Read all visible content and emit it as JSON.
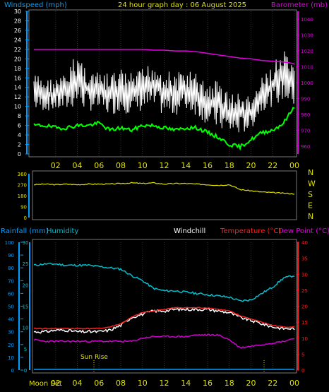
{
  "header": {
    "left_label": "Windspeed (mph)",
    "title": "24 hour graph day : 06 August 2025",
    "right_label": "Barometer (mb)"
  },
  "lower_header": {
    "rainfall": "Rainfall (mm)",
    "humidity": "Humidity",
    "windchill": "Windchill",
    "temperature": "Temperature (°C)",
    "dewpoint": "Dew Point (°C)"
  },
  "bottom_labels": {
    "moon_set": "Moon Set",
    "sun_rise": "Sun Rise"
  },
  "colors": {
    "wind": "#ffffff",
    "barometer": "#e000e0",
    "gust_avg": "#00ff00",
    "direction": "#e0e000",
    "humidity": "#00c0d0",
    "windchill": "#ffffff",
    "temperature": "#ff2020",
    "dewpoint": "#d000d0",
    "rainfall": "#00a0ff",
    "axis_x": "#e0e000",
    "axis_left": "#00a0ff"
  },
  "chart_data": [
    {
      "type": "line",
      "name": "wind-barometer",
      "x_ticks": [
        "02",
        "04",
        "06",
        "08",
        "10",
        "12",
        "14",
        "16",
        "18",
        "20",
        "22",
        "00"
      ],
      "y_left_ticks": [
        0,
        2,
        4,
        6,
        8,
        10,
        12,
        14,
        16,
        18,
        20,
        22,
        24,
        26,
        28,
        30
      ],
      "y_left_lim": [
        0,
        30
      ],
      "y_right_ticks": [
        960,
        970,
        980,
        990,
        1000,
        1010,
        1020,
        1030,
        1040
      ],
      "y_right_lim": [
        955,
        1045
      ],
      "hours": [
        0,
        1,
        2,
        3,
        4,
        5,
        6,
        7,
        8,
        9,
        10,
        11,
        12,
        13,
        14,
        15,
        16,
        17,
        18,
        19,
        20,
        21,
        22,
        23,
        24
      ],
      "wind_max": [
        17,
        16,
        16,
        17,
        22,
        18,
        17,
        17,
        18,
        17,
        18,
        20,
        18,
        17,
        18,
        17,
        15,
        16,
        13,
        13,
        12,
        16,
        19,
        22,
        18
      ],
      "wind_min": [
        9,
        9,
        9,
        9,
        10,
        9,
        9,
        8,
        9,
        8,
        9,
        9,
        8,
        8,
        9,
        8,
        6,
        5,
        4,
        4,
        5,
        9,
        10,
        11,
        10
      ],
      "wind_avg": [
        6,
        6,
        5.5,
        5.5,
        6,
        6,
        6.5,
        5,
        5.5,
        5,
        6,
        6,
        5.5,
        5,
        5.5,
        5.5,
        4.5,
        3.5,
        2,
        1.5,
        3,
        4.5,
        5,
        6.5,
        10
      ],
      "barometer": [
        1021,
        1021,
        1021,
        1021,
        1021,
        1021,
        1021,
        1021,
        1021,
        1021,
        1021,
        1020.5,
        1020.5,
        1020,
        1020,
        1019.5,
        1018.5,
        1017.5,
        1016.5,
        1015.5,
        1015,
        1014,
        1013.5,
        1013,
        1012
      ]
    },
    {
      "type": "line",
      "name": "wind-direction",
      "y_ticks": [
        0,
        90,
        180,
        270,
        360
      ],
      "y_lim": [
        0,
        360
      ],
      "compass": [
        "N",
        "W",
        "S",
        "E",
        "N"
      ],
      "hours": [
        0,
        1,
        2,
        3,
        4,
        5,
        6,
        7,
        8,
        9,
        10,
        11,
        12,
        13,
        14,
        15,
        16,
        17,
        18,
        19,
        20,
        21,
        22,
        23,
        24
      ],
      "direction": [
        270,
        275,
        270,
        275,
        270,
        275,
        275,
        275,
        280,
        285,
        280,
        285,
        275,
        280,
        280,
        275,
        270,
        265,
        270,
        230,
        220,
        210,
        205,
        200,
        195
      ]
    },
    {
      "type": "line",
      "name": "temp-humidity",
      "y_rain_ticks": [
        0,
        5,
        10,
        15,
        20,
        25,
        30
      ],
      "y_rain_lim": [
        0,
        30
      ],
      "y_humidity_ticks": [
        0,
        10,
        20,
        30,
        40,
        50,
        60,
        70,
        80,
        90,
        100
      ],
      "y_humidity_lim": [
        0,
        100
      ],
      "y_temp_ticks": [
        0,
        5,
        10,
        15,
        20,
        25,
        30,
        35,
        40
      ],
      "y_temp_lim": [
        0,
        40
      ],
      "hours": [
        0,
        1,
        2,
        3,
        4,
        5,
        6,
        7,
        8,
        9,
        10,
        11,
        12,
        13,
        14,
        15,
        16,
        17,
        18,
        19,
        20,
        21,
        22,
        23,
        24
      ],
      "humidity": [
        82,
        83,
        83,
        82,
        82,
        82,
        81,
        80,
        79,
        74,
        70,
        64,
        62,
        62,
        61,
        60,
        59,
        58,
        57,
        54,
        55,
        60,
        65,
        72,
        74
      ],
      "temperature": [
        13,
        13,
        13,
        13,
        13,
        13,
        13,
        13.5,
        14.5,
        16.5,
        18,
        18.5,
        19,
        19.5,
        19.5,
        19.5,
        19.5,
        19,
        18.5,
        17,
        16,
        15,
        14,
        13.5,
        13.5
      ],
      "windchill": [
        12,
        12,
        12.5,
        12.5,
        12,
        12,
        12,
        12.5,
        14,
        16.5,
        17.5,
        18.5,
        18.5,
        19,
        19,
        19,
        19,
        18.5,
        18,
        16.5,
        15.5,
        14.5,
        13.5,
        13,
        13
      ],
      "dewpoint": [
        9.5,
        9,
        9,
        9,
        9,
        9,
        9,
        9,
        9,
        9,
        10,
        10.5,
        10.5,
        10.5,
        10.5,
        11,
        11,
        11,
        9.5,
        7,
        7.5,
        8,
        8.5,
        9,
        10
      ],
      "rainfall": [
        0,
        0,
        0,
        0,
        0,
        0,
        0,
        0,
        0,
        0,
        0,
        0,
        0,
        0,
        0,
        0,
        0,
        0,
        0,
        0,
        0,
        0,
        0,
        0,
        0
      ]
    }
  ]
}
